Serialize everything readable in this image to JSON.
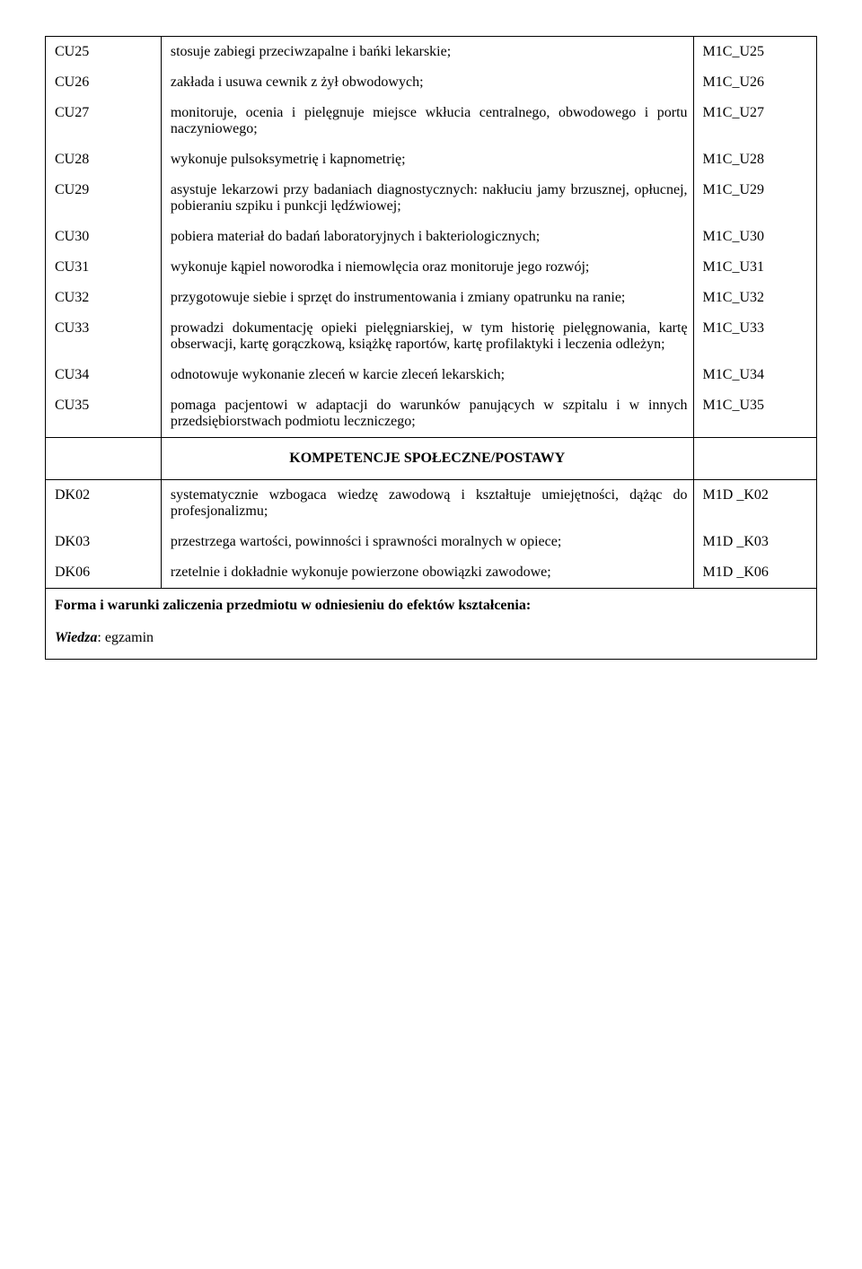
{
  "rows": [
    {
      "code": "CU25",
      "desc": "stosuje zabiegi przeciwzapalne i bańki lekarskie;",
      "ref": "M1C_U25"
    },
    {
      "code": "CU26",
      "desc": "zakłada i usuwa cewnik z żył obwodowych;",
      "ref": "M1C_U26"
    },
    {
      "code": "CU27",
      "desc": "monitoruje, ocenia i pielęgnuje miejsce wkłucia centralnego, obwodowego i portu naczyniowego;",
      "ref": "M1C_U27"
    },
    {
      "code": "CU28",
      "desc": "wykonuje pulsoksymetrię i kapnometrię;",
      "ref": "M1C_U28"
    },
    {
      "code": "CU29",
      "desc": "asystuje lekarzowi przy badaniach diagnostycznych: nakłuciu jamy brzusznej, opłucnej, pobieraniu szpiku i punkcji lędźwiowej;",
      "ref": "M1C_U29"
    },
    {
      "code": "CU30",
      "desc": "pobiera materiał do badań laboratoryjnych i bakteriologicznych;",
      "ref": "M1C_U30"
    },
    {
      "code": "CU31",
      "desc": "wykonuje kąpiel noworodka i niemowlęcia oraz monitoruje jego rozwój;",
      "ref": "M1C_U31"
    },
    {
      "code": "CU32",
      "desc": "przygotowuje siebie i sprzęt do instrumentowania i zmiany opatrunku na ranie;",
      "ref": "M1C_U32"
    },
    {
      "code": "CU33",
      "desc": "prowadzi dokumentację opieki pielęgniarskiej, w tym historię pielęgnowania, kartę obserwacji, kartę gorączkową, książkę raportów, kartę profilaktyki i leczenia odleżyn;",
      "ref": "M1C_U33"
    },
    {
      "code": "CU34",
      "desc": "odnotowuje wykonanie zleceń w karcie zleceń lekarskich;",
      "ref": "M1C_U34"
    },
    {
      "code": "CU35",
      "desc": "pomaga pacjentowi w adaptacji do warunków panujących w szpitalu i w innych przedsiębiorstwach podmiotu leczniczego;",
      "ref": "M1C_U35"
    }
  ],
  "sectionTitle": "KOMPETENCJE SPOŁECZNE/POSTAWY",
  "rows2": [
    {
      "code": "DK02",
      "desc": "systematycznie wzbogaca wiedzę zawodową i kształtuje umiejętności, dążąc do profesjonalizmu;",
      "ref": "M1D _K02"
    },
    {
      "code": "DK03",
      "desc": "przestrzega wartości, powinności i sprawności moralnych w opiece;",
      "ref": "M1D _K03"
    },
    {
      "code": "DK06",
      "desc": "rzetelnie i dokładnie wykonuje powierzone obowiązki zawodowe;",
      "ref": "M1D _K06"
    }
  ],
  "footer": {
    "line1Strong": "Forma i warunki zaliczenia przedmiotu w odniesieniu do efektów kształcenia:",
    "line2Italic": "Wiedza",
    "line2Rest": ": egzamin"
  }
}
